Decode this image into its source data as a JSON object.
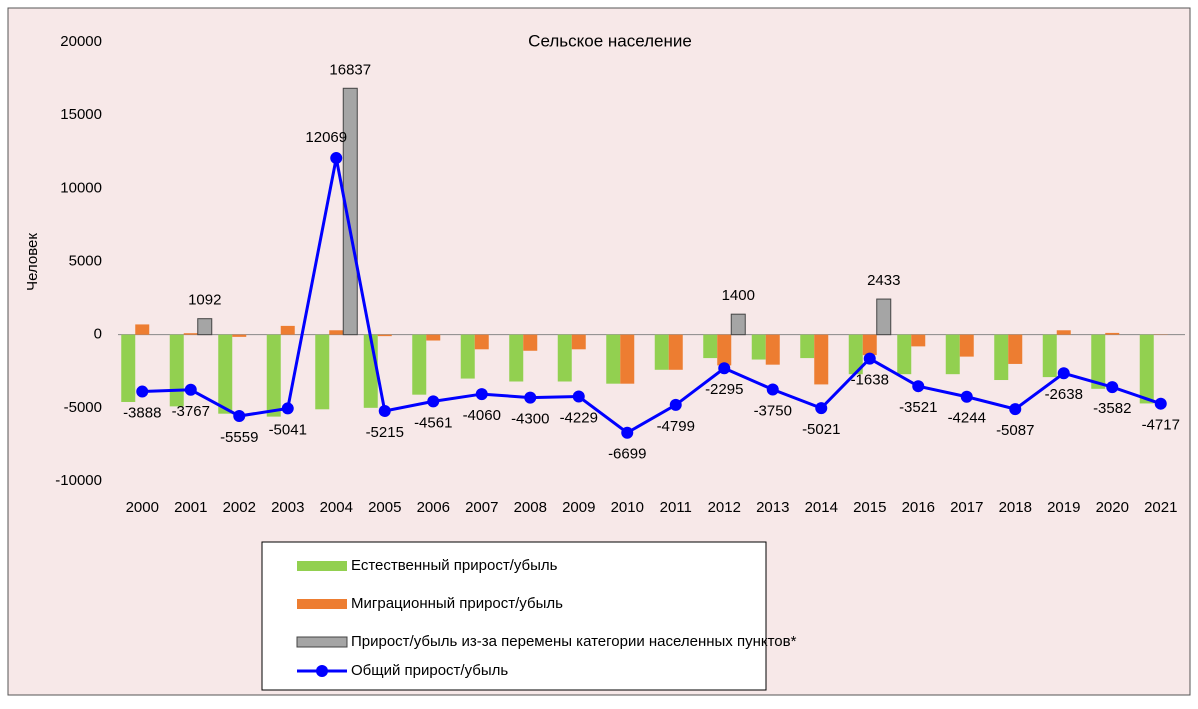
{
  "chart_data": {
    "type": "bar-line",
    "title": "Сельское население",
    "y_label": "Человек",
    "categories": [
      "2000",
      "2001",
      "2002",
      "2003",
      "2004",
      "2005",
      "2006",
      "2007",
      "2008",
      "2009",
      "2010",
      "2011",
      "2012",
      "2013",
      "2014",
      "2015",
      "2016",
      "2017",
      "2018",
      "2019",
      "2020",
      "2021"
    ],
    "series": [
      {
        "name": "Естественный прирост/убыль",
        "type": "bar",
        "color": "#92d050",
        "values": [
          -4600,
          -4900,
          -5400,
          -5600,
          -5100,
          -5000,
          -4100,
          -3000,
          -3200,
          -3200,
          -3350,
          -2400,
          -1600,
          -1700,
          -1600,
          -2700,
          -2700,
          -2700,
          -3100,
          -2900,
          -3700,
          -4700
        ]
      },
      {
        "name": "Миграционный прирост/убыль",
        "type": "bar",
        "color": "#ed7d31",
        "values": [
          700,
          100,
          -150,
          600,
          300,
          -100,
          -400,
          -1000,
          -1100,
          -1000,
          -3350,
          -2400,
          -2100,
          -2050,
          -3400,
          -1400,
          -800,
          -1500,
          -2000,
          300,
          120,
          -20
        ]
      },
      {
        "name": "Прирост/убыль из-за перемены категории населенных пунктов*",
        "type": "bar",
        "color": "#a5a5a5",
        "values": [
          null,
          1092,
          null,
          null,
          16837,
          null,
          null,
          null,
          null,
          null,
          null,
          null,
          1400,
          null,
          null,
          2433,
          null,
          null,
          null,
          null,
          null,
          null
        ]
      },
      {
        "name": "Общий прирост/убыль",
        "type": "line",
        "color": "#0000ff",
        "values": [
          -3888,
          -3767,
          -5559,
          -5041,
          12069,
          -5215,
          -4561,
          -4060,
          -4300,
          -4229,
          -6699,
          -4799,
          -2295,
          -3750,
          -5021,
          -1638,
          -3521,
          -4244,
          -5087,
          -2638,
          -3582,
          -4717
        ]
      }
    ],
    "ylim": [
      -10000,
      20000
    ],
    "yticks": [
      -10000,
      -5000,
      0,
      5000,
      10000,
      15000,
      20000
    ],
    "grid": false
  }
}
